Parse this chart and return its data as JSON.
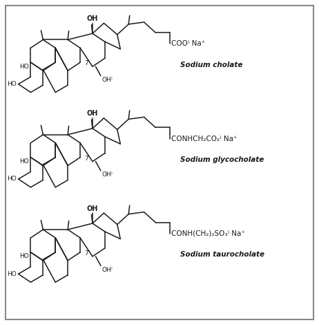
{
  "bg_color": "#ffffff",
  "line_color": "#1a1a1a",
  "lw": 1.1,
  "figsize": [
    4.62,
    4.7
  ],
  "dpi": 100,
  "structures": [
    {
      "name": "Sodium cholate",
      "sc": "COO⁾ Na⁺",
      "oy": 0.0
    },
    {
      "name": "Sodium glycocholate",
      "sc": "CONHCH₂CO₂⁾ Na⁺",
      "oy": -4.6
    },
    {
      "name": "Sodium taurocholate",
      "sc": "CONH(CH₂)₂SO₃⁾ Na⁺",
      "oy": -9.2
    }
  ]
}
